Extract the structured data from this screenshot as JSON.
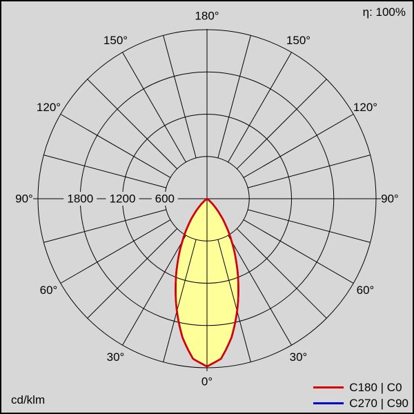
{
  "window": {
    "bg": "#d7d7d7",
    "border": "#000000"
  },
  "header": {
    "efficiency": "η: 100%"
  },
  "footer": {
    "unit": "cd/klm"
  },
  "legend": {
    "items": [
      {
        "label": "C180 | C0",
        "color": "#dd0000"
      },
      {
        "label": "C270 | C90",
        "color": "#0000cc"
      }
    ]
  },
  "chart_data": {
    "type": "polar",
    "unit": "cd/klm",
    "efficiency_percent": 100,
    "value_max": 2400,
    "ring_values": [
      600,
      1200,
      1800,
      2400
    ],
    "ring_axis_label_values": [
      1800,
      1200,
      600
    ],
    "ring_axis_labels": [
      "1800",
      "1200",
      "600"
    ],
    "angle_step_deg": 15,
    "angle_label_step_deg": 30,
    "angle_labels_deg": [
      0,
      30,
      60,
      90,
      120,
      150,
      180
    ],
    "grid_color": "#000000",
    "series": [
      {
        "name": "C180 | C0",
        "color": "#dd0000",
        "fill": "#ffff99",
        "symmetric": true,
        "angles_deg": [
          0,
          5,
          10,
          15,
          20,
          25,
          30,
          35,
          40,
          45,
          50,
          55
        ],
        "values_cd_klm": [
          2380,
          2280,
          2000,
          1650,
          1300,
          980,
          700,
          470,
          280,
          140,
          50,
          0
        ]
      },
      {
        "name": "C270 | C90",
        "color": "#0000cc",
        "fill": null,
        "symmetric": true,
        "angles_deg": [
          0,
          5,
          10,
          15,
          20,
          25,
          30,
          35,
          40,
          45,
          50,
          55
        ],
        "values_cd_klm": [
          2380,
          2280,
          2000,
          1650,
          1300,
          980,
          700,
          470,
          280,
          140,
          50,
          0
        ]
      }
    ]
  }
}
